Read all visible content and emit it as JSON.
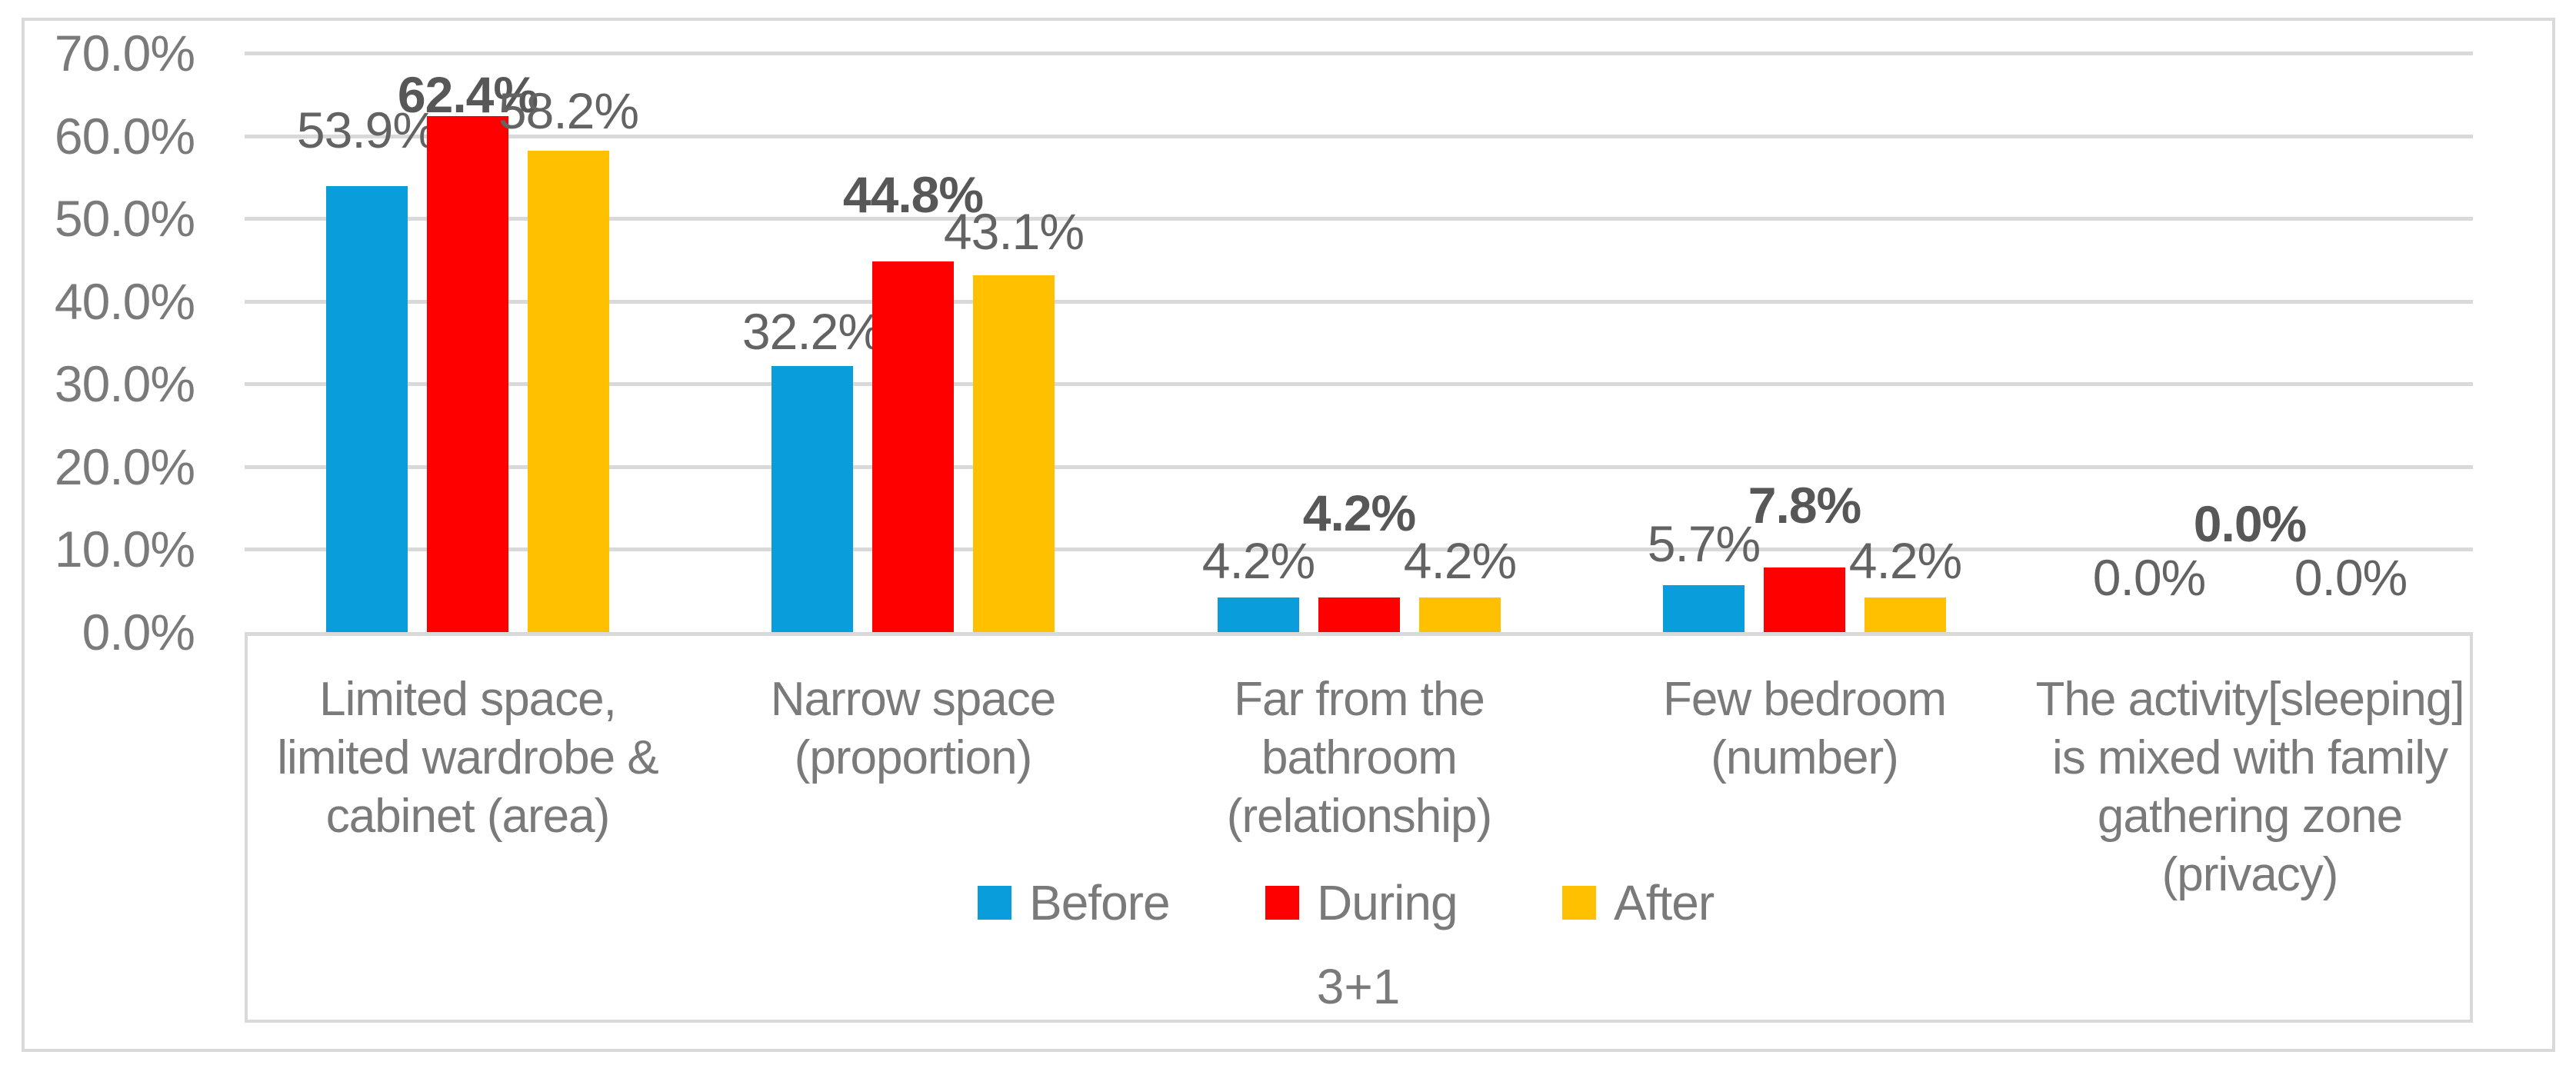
{
  "chart_data": {
    "type": "bar",
    "title": "",
    "xlabel": "3+1",
    "ylabel": "",
    "ylim": [
      0,
      70
    ],
    "grid": true,
    "legend_position": "bottom-inside-category-box",
    "y_ticks": [
      {
        "label": "70.0%",
        "value": 70
      },
      {
        "label": "60.0%",
        "value": 60
      },
      {
        "label": "50.0%",
        "value": 50
      },
      {
        "label": "40.0%",
        "value": 40
      },
      {
        "label": "30.0%",
        "value": 30
      },
      {
        "label": "20.0%",
        "value": 20
      },
      {
        "label": "10.0%",
        "value": 10
      },
      {
        "label": "0.0%",
        "value": 0
      }
    ],
    "categories": [
      "Limited space, limited wardrobe & cabinet (area)",
      "Narrow space (proportion)",
      "Far from the bathroom (relationship)",
      "Few bedroom (number)",
      "The activity[sleeping] is mixed with family gathering zone (privacy)"
    ],
    "category_lines": [
      [
        "Limited space,",
        "limited wardrobe &",
        "cabinet (area)"
      ],
      [
        "Narrow space",
        "(proportion)"
      ],
      [
        "Far from the",
        "bathroom",
        "(relationship)"
      ],
      [
        "Few bedroom",
        "(number)"
      ],
      [
        "The activity[sleeping]",
        "is mixed with family",
        "gathering zone",
        "(privacy)"
      ]
    ],
    "series": [
      {
        "name": "Before",
        "color": "#0a9ddb",
        "bold_labels": false,
        "values": [
          53.9,
          32.2,
          4.2,
          5.7,
          0.0
        ],
        "labels": [
          "53.9%",
          "32.2%",
          "4.2%",
          "5.7%",
          "0.0%"
        ]
      },
      {
        "name": "During",
        "color": "#ff0000",
        "bold_labels": true,
        "values": [
          62.4,
          44.8,
          4.2,
          7.8,
          0.0
        ],
        "labels": [
          "62.4%",
          "44.8%",
          "4.2%",
          "7.8%",
          "0.0%"
        ]
      },
      {
        "name": "After",
        "color": "#ffc000",
        "bold_labels": false,
        "values": [
          58.2,
          43.1,
          4.2,
          4.2,
          0.0
        ],
        "labels": [
          "58.2%",
          "43.1%",
          "4.2%",
          "4.2%",
          "0.0%"
        ]
      }
    ],
    "colors": {
      "gridline": "#d9d9d9",
      "frame_border": "#d9d9d9",
      "axis_text": "#7a7a7a",
      "data_label_text": "#636363"
    }
  }
}
